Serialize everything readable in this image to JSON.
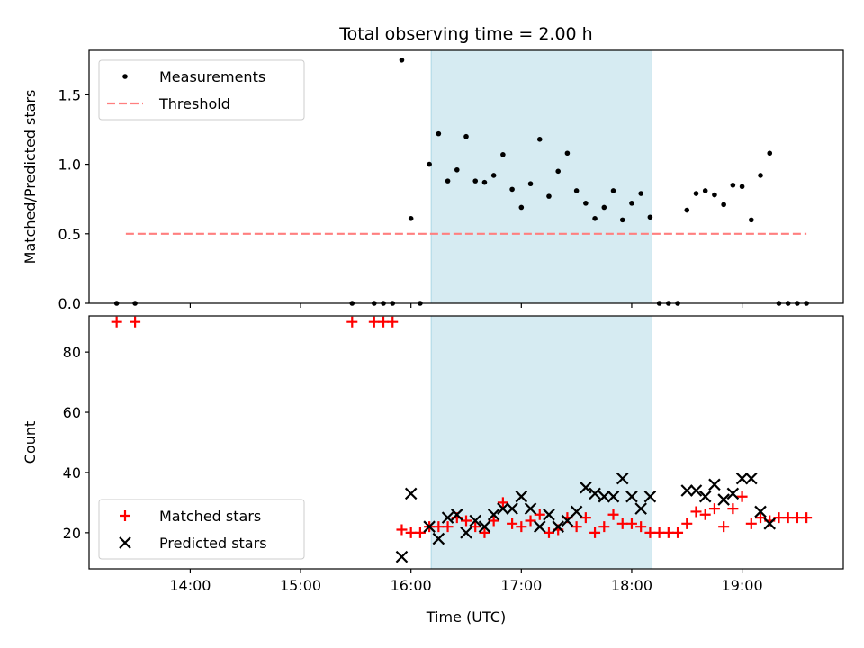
{
  "chart_data": [
    {
      "type": "scatter",
      "title": "Total observing time = 2.00 h",
      "xlabel": "",
      "ylabel": "Matched/Predicted stars",
      "xlim": [
        "13:05",
        "19:55"
      ],
      "ylim": [
        0,
        1.82
      ],
      "yticks": [
        0.0,
        0.5,
        1.0,
        1.5
      ],
      "ytick_labels": [
        "0.0",
        "0.5",
        "1.0",
        "1.5"
      ],
      "legend_position": "upper left",
      "highlight_span": {
        "start": "16:11",
        "end": "18:11",
        "color": "#add8e6"
      },
      "series": [
        {
          "name": "Measurements",
          "kind": "points",
          "color": "#000000",
          "points": [
            [
              "13:20",
              0
            ],
            [
              "13:30",
              0
            ],
            [
              "15:28",
              0
            ],
            [
              "15:40",
              0
            ],
            [
              "15:45",
              0
            ],
            [
              "15:50",
              0
            ],
            [
              "15:55",
              1.75
            ],
            [
              "16:00",
              0.61
            ],
            [
              "16:05",
              0
            ],
            [
              "16:10",
              1.0
            ],
            [
              "16:15",
              1.22
            ],
            [
              "16:20",
              0.88
            ],
            [
              "16:25",
              0.96
            ],
            [
              "16:30",
              1.2
            ],
            [
              "16:35",
              0.88
            ],
            [
              "16:40",
              0.87
            ],
            [
              "16:45",
              0.92
            ],
            [
              "16:50",
              1.07
            ],
            [
              "16:55",
              0.82
            ],
            [
              "17:00",
              0.69
            ],
            [
              "17:05",
              0.86
            ],
            [
              "17:10",
              1.18
            ],
            [
              "17:15",
              0.77
            ],
            [
              "17:20",
              0.95
            ],
            [
              "17:25",
              1.08
            ],
            [
              "17:30",
              0.81
            ],
            [
              "17:35",
              0.72
            ],
            [
              "17:40",
              0.61
            ],
            [
              "17:45",
              0.69
            ],
            [
              "17:50",
              0.81
            ],
            [
              "17:55",
              0.6
            ],
            [
              "18:00",
              0.72
            ],
            [
              "18:05",
              0.79
            ],
            [
              "18:10",
              0.62
            ],
            [
              "18:15",
              0
            ],
            [
              "18:20",
              0
            ],
            [
              "18:25",
              0
            ],
            [
              "18:30",
              0.67
            ],
            [
              "18:35",
              0.79
            ],
            [
              "18:40",
              0.81
            ],
            [
              "18:45",
              0.78
            ],
            [
              "18:50",
              0.71
            ],
            [
              "18:55",
              0.85
            ],
            [
              "19:00",
              0.84
            ],
            [
              "19:05",
              0.6
            ],
            [
              "19:10",
              0.92
            ],
            [
              "19:15",
              1.08
            ],
            [
              "19:20",
              0
            ],
            [
              "19:25",
              0
            ],
            [
              "19:30",
              0
            ],
            [
              "19:35",
              0
            ]
          ]
        },
        {
          "name": "Threshold",
          "kind": "dashed-line",
          "color": "#ff7f7f",
          "x": [
            "13:25",
            "19:35"
          ],
          "y": [
            0.5,
            0.5
          ]
        }
      ]
    },
    {
      "type": "scatter",
      "title": "",
      "xlabel": "Time (UTC)",
      "ylabel": "Count",
      "xlim": [
        "13:05",
        "19:55"
      ],
      "ylim": [
        8,
        92
      ],
      "xticks": [
        "14:00",
        "15:00",
        "16:00",
        "17:00",
        "18:00",
        "19:00"
      ],
      "yticks": [
        20,
        40,
        60,
        80
      ],
      "ytick_labels": [
        "20",
        "40",
        "60",
        "80"
      ],
      "legend_position": "lower left",
      "highlight_span": {
        "start": "16:11",
        "end": "18:11",
        "color": "#add8e6"
      },
      "series": [
        {
          "name": "Matched stars",
          "kind": "plus",
          "color": "#ff0000",
          "points": [
            [
              "13:20",
              90
            ],
            [
              "13:30",
              90
            ],
            [
              "15:28",
              90
            ],
            [
              "15:40",
              90
            ],
            [
              "15:45",
              90
            ],
            [
              "15:50",
              90
            ],
            [
              "15:55",
              21
            ],
            [
              "16:00",
              20
            ],
            [
              "16:05",
              20
            ],
            [
              "16:10",
              22
            ],
            [
              "16:15",
              22
            ],
            [
              "16:20",
              22
            ],
            [
              "16:25",
              25
            ],
            [
              "16:30",
              24
            ],
            [
              "16:35",
              22
            ],
            [
              "16:40",
              20
            ],
            [
              "16:45",
              24
            ],
            [
              "16:50",
              30
            ],
            [
              "16:55",
              23
            ],
            [
              "17:00",
              22
            ],
            [
              "17:05",
              24
            ],
            [
              "17:10",
              26
            ],
            [
              "17:15",
              20
            ],
            [
              "17:20",
              21
            ],
            [
              "17:25",
              25
            ],
            [
              "17:30",
              22
            ],
            [
              "17:35",
              25
            ],
            [
              "17:40",
              20
            ],
            [
              "17:45",
              22
            ],
            [
              "17:50",
              26
            ],
            [
              "17:55",
              23
            ],
            [
              "18:00",
              23
            ],
            [
              "18:05",
              22
            ],
            [
              "18:10",
              20
            ],
            [
              "18:15",
              20
            ],
            [
              "18:20",
              20
            ],
            [
              "18:25",
              20
            ],
            [
              "18:30",
              23
            ],
            [
              "18:35",
              27
            ],
            [
              "18:40",
              26
            ],
            [
              "18:45",
              28
            ],
            [
              "18:50",
              22
            ],
            [
              "18:55",
              28
            ],
            [
              "19:00",
              32
            ],
            [
              "19:05",
              23
            ],
            [
              "19:10",
              25
            ],
            [
              "19:15",
              24
            ],
            [
              "19:20",
              25
            ],
            [
              "19:25",
              25
            ],
            [
              "19:30",
              25
            ],
            [
              "19:35",
              25
            ]
          ]
        },
        {
          "name": "Predicted stars",
          "kind": "x",
          "color": "#000000",
          "points": [
            [
              "15:55",
              12
            ],
            [
              "16:00",
              33
            ],
            [
              "16:10",
              22
            ],
            [
              "16:15",
              18
            ],
            [
              "16:20",
              25
            ],
            [
              "16:25",
              26
            ],
            [
              "16:30",
              20
            ],
            [
              "16:35",
              24
            ],
            [
              "16:40",
              22
            ],
            [
              "16:45",
              26
            ],
            [
              "16:50",
              28
            ],
            [
              "16:55",
              28
            ],
            [
              "17:00",
              32
            ],
            [
              "17:05",
              28
            ],
            [
              "17:10",
              22
            ],
            [
              "17:15",
              26
            ],
            [
              "17:20",
              22
            ],
            [
              "17:25",
              24
            ],
            [
              "17:30",
              27
            ],
            [
              "17:35",
              35
            ],
            [
              "17:40",
              33
            ],
            [
              "17:45",
              32
            ],
            [
              "17:50",
              32
            ],
            [
              "17:55",
              38
            ],
            [
              "18:00",
              32
            ],
            [
              "18:05",
              28
            ],
            [
              "18:10",
              32
            ],
            [
              "18:30",
              34
            ],
            [
              "18:35",
              34
            ],
            [
              "18:40",
              32
            ],
            [
              "18:45",
              36
            ],
            [
              "18:50",
              31
            ],
            [
              "18:55",
              33
            ],
            [
              "19:00",
              38
            ],
            [
              "19:05",
              38
            ],
            [
              "19:10",
              27
            ],
            [
              "19:15",
              23
            ]
          ]
        }
      ]
    }
  ]
}
